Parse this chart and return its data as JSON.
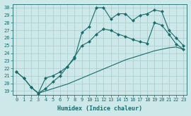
{
  "xlabel": "Humidex (Indice chaleur)",
  "bg_color": "#cce8e8",
  "line_color": "#1a6b6b",
  "grid_color": "#b0d0d0",
  "xlim": [
    -0.5,
    23.5
  ],
  "ylim": [
    18.5,
    30.5
  ],
  "xticks": [
    0,
    1,
    2,
    3,
    4,
    5,
    6,
    7,
    8,
    9,
    10,
    11,
    12,
    13,
    14,
    15,
    16,
    17,
    18,
    19,
    20,
    21,
    22,
    23
  ],
  "yticks": [
    19,
    20,
    21,
    22,
    23,
    24,
    25,
    26,
    27,
    28,
    29,
    30
  ],
  "line1_x": [
    0,
    1,
    2,
    3,
    4,
    5,
    6,
    7,
    8,
    9,
    10,
    11,
    12,
    13,
    14,
    15,
    16,
    17,
    18,
    19,
    20,
    21,
    22,
    23
  ],
  "line1_y": [
    21.5,
    20.7,
    19.5,
    18.7,
    20.7,
    21.0,
    21.5,
    22.2,
    23.3,
    26.7,
    27.5,
    30.0,
    30.0,
    28.5,
    29.2,
    29.2,
    28.3,
    29.0,
    29.2,
    29.7,
    29.5,
    27.0,
    26.0,
    25.0
  ],
  "line2_x": [
    0,
    1,
    2,
    3,
    4,
    5,
    6,
    7,
    8,
    9,
    10,
    11,
    12,
    13,
    14,
    15,
    16,
    17,
    18,
    19,
    20,
    21,
    22,
    23
  ],
  "line2_y": [
    21.5,
    20.7,
    19.5,
    18.7,
    19.3,
    20.2,
    21.0,
    22.2,
    23.5,
    25.0,
    25.5,
    26.5,
    27.2,
    27.0,
    26.5,
    26.2,
    25.8,
    25.5,
    25.3,
    28.0,
    27.7,
    26.5,
    25.2,
    24.5
  ],
  "line3_x": [
    2,
    3,
    4,
    5,
    6,
    7,
    8,
    9,
    10,
    11,
    12,
    13,
    14,
    15,
    16,
    17,
    18,
    19,
    20,
    21,
    22,
    23
  ],
  "line3_y": [
    19.5,
    18.7,
    19.0,
    19.3,
    19.6,
    19.9,
    20.3,
    20.7,
    21.1,
    21.5,
    21.9,
    22.3,
    22.7,
    23.1,
    23.4,
    23.7,
    24.0,
    24.3,
    24.5,
    24.7,
    24.8,
    24.5
  ]
}
